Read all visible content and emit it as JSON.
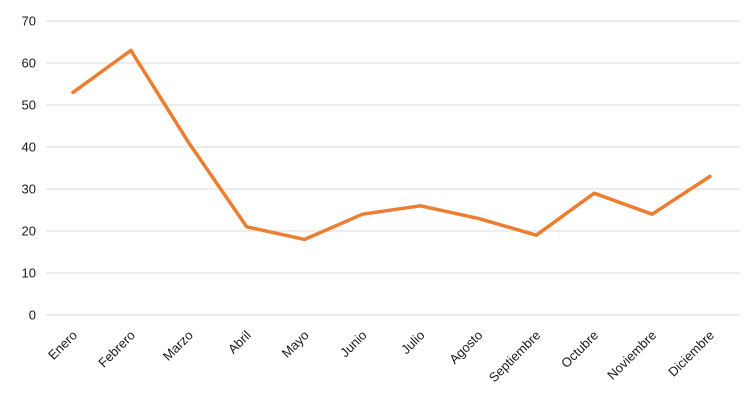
{
  "chart_data": {
    "type": "line",
    "title": "",
    "xlabel": "",
    "ylabel": "",
    "categories": [
      "Enero",
      "Febrero",
      "Marzo",
      "Abril",
      "Mayo",
      "Junio",
      "Julio",
      "Agosto",
      "Septiembre",
      "Octubre",
      "Noviembre",
      "Diciembre"
    ],
    "series": [
      {
        "values": [
          53,
          63,
          41,
          21,
          18,
          24,
          26,
          23,
          19,
          29,
          24,
          33
        ],
        "color": "#ed7d31"
      }
    ],
    "ylim": [
      0,
      70
    ],
    "yticks": [
      "0",
      "10",
      "20",
      "30",
      "40",
      "50",
      "60",
      "70"
    ],
    "grid": true,
    "legend": "none"
  }
}
